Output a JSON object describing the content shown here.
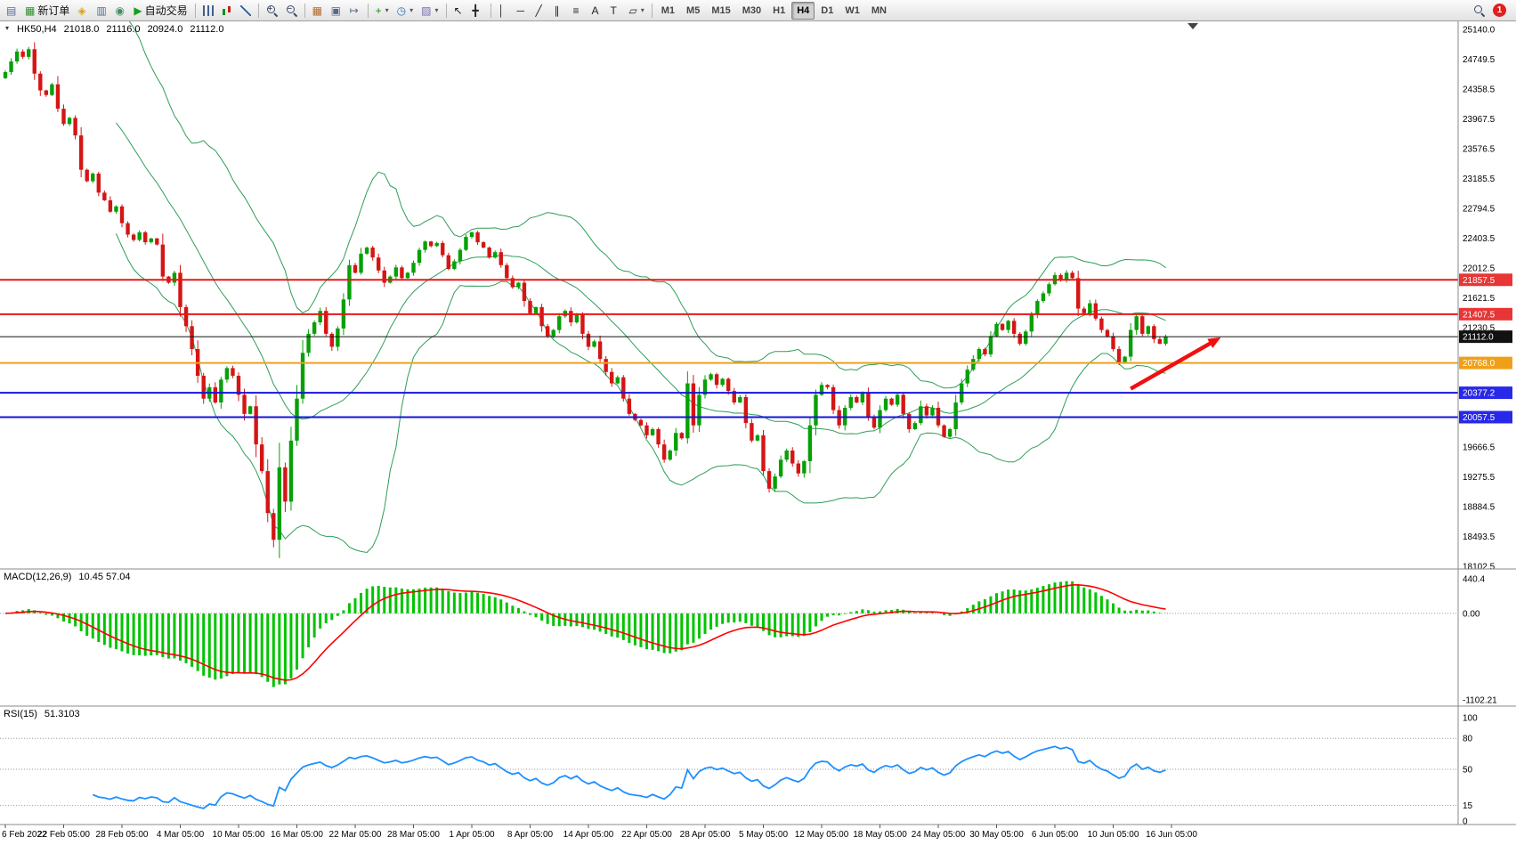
{
  "toolbar": {
    "new_order_label": "新订单",
    "autotrading_label": "自动交易",
    "timeframes": [
      "M1",
      "M5",
      "M15",
      "M30",
      "H1",
      "H4",
      "D1",
      "W1",
      "MN"
    ],
    "active_timeframe": "H4",
    "notification_count": "1",
    "items": [
      {
        "type": "button",
        "name": "new-chart",
        "glyph": "▤",
        "color": "#4a6f9a"
      },
      {
        "type": "button",
        "name": "new-order",
        "glyph": "▦",
        "color": "#2e8f2e",
        "label_key": "new_order_label"
      },
      {
        "type": "button",
        "name": "market-watch",
        "glyph": "◈",
        "color": "#d8a21a"
      },
      {
        "type": "button",
        "name": "data-window",
        "glyph": "▥",
        "color": "#4a6f9a"
      },
      {
        "type": "button",
        "name": "navigator",
        "glyph": "◉",
        "color": "#3f8f5f"
      },
      {
        "type": "button",
        "name": "auto-trading",
        "glyph": "▶",
        "color": "#18a018",
        "label_key": "autotrading_label"
      },
      {
        "type": "sep"
      },
      {
        "type": "button",
        "name": "chart-bars",
        "css": "bars"
      },
      {
        "type": "button",
        "name": "chart-candles",
        "css": "candles"
      },
      {
        "type": "button",
        "name": "chart-line",
        "css": "linech"
      },
      {
        "type": "sep"
      },
      {
        "type": "button",
        "name": "zoom-in",
        "css": "mag",
        "sub": "+"
      },
      {
        "type": "button",
        "name": "zoom-out",
        "css": "mag",
        "sub": "−"
      },
      {
        "type": "sep"
      },
      {
        "type": "button",
        "name": "tile-windows",
        "glyph": "▦",
        "color": "#b06a2a"
      },
      {
        "type": "button",
        "name": "auto-scroll",
        "glyph": "▣",
        "color": "#55698a"
      },
      {
        "type": "button",
        "name": "chart-shift",
        "glyph": "↦",
        "color": "#55698a"
      },
      {
        "type": "sep"
      },
      {
        "type": "button",
        "name": "indicators",
        "glyph": "+",
        "color": "#1a8f1a",
        "dd": true
      },
      {
        "type": "button",
        "name": "periods",
        "glyph": "◷",
        "color": "#2a6fbf",
        "dd": true
      },
      {
        "type": "button",
        "name": "templates",
        "glyph": "▨",
        "color": "#7a6fae",
        "dd": true
      },
      {
        "type": "sep"
      },
      {
        "type": "button",
        "name": "cursor",
        "glyph": "↖",
        "color": "#222"
      },
      {
        "type": "button",
        "name": "crosshair",
        "glyph": "╋",
        "color": "#222"
      },
      {
        "type": "sep"
      },
      {
        "type": "button",
        "name": "vertical-line",
        "glyph": "│",
        "color": "#222"
      },
      {
        "type": "button",
        "name": "horizontal-line",
        "glyph": "─",
        "color": "#222"
      },
      {
        "type": "button",
        "name": "trendline",
        "glyph": "╱",
        "color": "#222"
      },
      {
        "type": "button",
        "name": "equidistant-channel",
        "glyph": "∥",
        "color": "#222"
      },
      {
        "type": "button",
        "name": "fibonacci",
        "glyph": "≡",
        "color": "#222"
      },
      {
        "type": "button",
        "name": "text",
        "glyph": "A",
        "color": "#222"
      },
      {
        "type": "button",
        "name": "text-label",
        "glyph": "T",
        "color": "#222"
      },
      {
        "type": "button",
        "name": "shapes",
        "glyph": "▱",
        "color": "#222",
        "dd": true
      },
      {
        "type": "sep"
      },
      {
        "type": "timeframes"
      },
      {
        "type": "spacer"
      },
      {
        "type": "button",
        "name": "search",
        "css": "mag"
      },
      {
        "type": "badge",
        "name": "notifications"
      }
    ]
  },
  "chart": {
    "symbol_period": "HK50,H4",
    "ohlc": {
      "open": "21018.0",
      "high": "21116.0",
      "low": "20924.0",
      "close": "21112.0"
    },
    "macd_label": "MACD(12,26,9)",
    "macd_values": "10.45 57.04",
    "rsi_label": "RSI(15)",
    "rsi_value": "51.3103"
  },
  "chart_data": {
    "type": "candlestick",
    "symbol": "HK50",
    "period": "H4",
    "price_axis": {
      "min": 18102.5,
      "max": 25140.0,
      "labels": [
        25140.0,
        24749.5,
        24358.5,
        23967.5,
        23576.5,
        23185.5,
        22794.5,
        22403.5,
        22012.5,
        21621.5,
        21230.5,
        20839.5,
        20448.5,
        20057.5,
        19666.5,
        19275.5,
        18884.5,
        18493.5,
        18102.5
      ]
    },
    "first_open": 24500,
    "closes": [
      24580,
      24720,
      24850,
      24780,
      24880,
      24560,
      24340,
      24280,
      24420,
      24100,
      23900,
      23980,
      23750,
      23300,
      23150,
      23250,
      23000,
      22900,
      22750,
      22820,
      22600,
      22450,
      22380,
      22480,
      22350,
      22400,
      22320,
      21900,
      21820,
      21950,
      21500,
      21250,
      20950,
      20600,
      20300,
      20450,
      20250,
      20550,
      20700,
      20600,
      20350,
      20100,
      20200,
      19700,
      19350,
      18800,
      18450,
      19400,
      18950,
      19750,
      20300,
      20900,
      21150,
      21300,
      21450,
      21150,
      20980,
      21220,
      21600,
      22050,
      21950,
      22200,
      22280,
      22150,
      21980,
      21820,
      21900,
      22020,
      21880,
      21950,
      22080,
      22250,
      22360,
      22300,
      22340,
      22180,
      22000,
      22100,
      22250,
      22420,
      22480,
      22350,
      22280,
      22150,
      22220,
      22050,
      21880,
      21760,
      21820,
      21580,
      21420,
      21500,
      21250,
      21120,
      21200,
      21380,
      21450,
      21300,
      21400,
      21150,
      20980,
      21050,
      20820,
      20650,
      20500,
      20580,
      20300,
      20100,
      20020,
      19950,
      19820,
      19900,
      19700,
      19500,
      19620,
      19850,
      19780,
      20500,
      19950,
      20350,
      20550,
      20620,
      20480,
      20560,
      20400,
      20250,
      20320,
      19980,
      19750,
      19820,
      19350,
      19120,
      19280,
      19500,
      19620,
      19450,
      19320,
      19480,
      19950,
      20350,
      20480,
      20450,
      20150,
      19950,
      20180,
      20320,
      20250,
      20380,
      20050,
      19920,
      20150,
      20300,
      20220,
      20350,
      20100,
      19900,
      19980,
      20200,
      20080,
      20180,
      19950,
      19800,
      19900,
      20250,
      20500,
      20680,
      20820,
      20950,
      20880,
      21120,
      21280,
      21200,
      21320,
      21150,
      21020,
      21180,
      21400,
      21580,
      21680,
      21800,
      21920,
      21850,
      21950,
      21880,
      21480,
      21420,
      21550,
      21350,
      21200,
      21120,
      20950,
      20780,
      20850,
      21200,
      21380,
      21150,
      21250,
      21080,
      21020,
      21112
    ],
    "candle_up_color": "#07a007",
    "candle_down_color": "#d51515",
    "bollinger": {
      "period": 20,
      "deviation": 2,
      "color": "#2e9e57"
    },
    "levels": [
      {
        "price": 21857.5,
        "label": "21857.5",
        "color": "#e81717",
        "badge": "#e83535",
        "width": 2
      },
      {
        "price": 21407.5,
        "label": "21407.5",
        "color": "#e81717",
        "badge": "#e83535",
        "width": 2
      },
      {
        "price": 20768.0,
        "label": "20768.0",
        "color": "#f0a018",
        "badge": "#f0a018",
        "width": 2
      },
      {
        "price": 20377.2,
        "label": "20377.2",
        "color": "#1414dc",
        "badge": "#2828e8",
        "width": 2
      },
      {
        "price": 20057.5,
        "label": "20057.5",
        "color": "#1414dc",
        "badge": "#2828e8",
        "width": 2
      }
    ],
    "current_price": {
      "value": 21112.0,
      "label": "21112.0",
      "badge": "#111111"
    },
    "macd": {
      "fast": 12,
      "slow": 26,
      "signal": 9,
      "axis_min": -1102.21,
      "axis_max": 440.4,
      "axis_labels": [
        "440.4",
        "0.00",
        "-1102.21"
      ],
      "axis_values": [
        440.4,
        0,
        -1102.21
      ],
      "histogram_color": "#00c400",
      "signal_color": "#ff0000"
    },
    "rsi": {
      "period": 15,
      "color": "#1e90ff",
      "levels": [
        80,
        50,
        15
      ],
      "axis_labels": [
        100,
        80,
        50,
        15,
        0
      ]
    },
    "dates": [
      "6 Feb 2022",
      "22 Feb 05:00",
      "28 Feb 05:00",
      "4 Mar 05:00",
      "10 Mar 05:00",
      "16 Mar 05:00",
      "22 Mar 05:00",
      "28 Mar 05:00",
      "1 Apr 05:00",
      "8 Apr 05:00",
      "14 Apr 05:00",
      "22 Apr 05:00",
      "28 Apr 05:00",
      "5 May 05:00",
      "12 May 05:00",
      "18 May 05:00",
      "24 May 05:00",
      "30 May 05:00",
      "6 Jun 05:00",
      "10 Jun 05:00",
      "16 Jun 05:00"
    ],
    "annotations": [
      {
        "type": "arrow",
        "color": "#f01010",
        "from_index": 193,
        "from_price": 20430,
        "to_index": 207,
        "to_price": 21040
      }
    ]
  }
}
